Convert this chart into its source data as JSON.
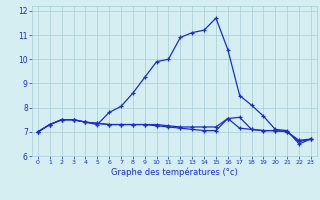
{
  "xlabel": "Graphe des températures (°c)",
  "bg_color": "#d4eef2",
  "grid_color": "#aaccd4",
  "line_color": "#1a2ecc",
  "xlim": [
    -0.5,
    23.5
  ],
  "ylim": [
    6,
    12.2
  ],
  "yticks": [
    6,
    7,
    8,
    9,
    10,
    11,
    12
  ],
  "xticks": [
    0,
    1,
    2,
    3,
    4,
    5,
    6,
    7,
    8,
    9,
    10,
    11,
    12,
    13,
    14,
    15,
    16,
    17,
    18,
    19,
    20,
    21,
    22,
    23
  ],
  "curve1_x": [
    0,
    1,
    2,
    3,
    4,
    5,
    6,
    7,
    8,
    9,
    10,
    11,
    12,
    13,
    14,
    15,
    16,
    17,
    18,
    19,
    20,
    21,
    22,
    23
  ],
  "curve1_y": [
    7.0,
    7.3,
    7.5,
    7.5,
    7.4,
    7.3,
    7.8,
    8.05,
    8.6,
    9.25,
    9.9,
    10.0,
    10.9,
    11.1,
    11.2,
    11.7,
    10.4,
    8.5,
    8.1,
    7.65,
    7.1,
    7.05,
    6.5,
    6.7
  ],
  "curve2_x": [
    0,
    1,
    2,
    3,
    4,
    5,
    6,
    7,
    8,
    9,
    10,
    11,
    12,
    13,
    14,
    15,
    16,
    17,
    18,
    19,
    20,
    21,
    22,
    23
  ],
  "curve2_y": [
    7.0,
    7.3,
    7.5,
    7.5,
    7.4,
    7.35,
    7.3,
    7.3,
    7.3,
    7.3,
    7.3,
    7.25,
    7.2,
    7.2,
    7.2,
    7.2,
    7.55,
    7.15,
    7.1,
    7.05,
    7.05,
    7.0,
    6.65,
    6.7
  ],
  "curve3_x": [
    0,
    1,
    2,
    3,
    4,
    5,
    6,
    7,
    8,
    9,
    10,
    11,
    12,
    13,
    14,
    15,
    16,
    17,
    18,
    19,
    20,
    21,
    22,
    23
  ],
  "curve3_y": [
    7.0,
    7.3,
    7.5,
    7.5,
    7.4,
    7.35,
    7.3,
    7.3,
    7.3,
    7.3,
    7.25,
    7.2,
    7.15,
    7.1,
    7.05,
    7.05,
    7.55,
    7.6,
    7.1,
    7.05,
    7.05,
    7.0,
    6.6,
    6.7
  ],
  "ytick_fontsize": 5.5,
  "xtick_fontsize": 4.5,
  "xlabel_fontsize": 6.0
}
